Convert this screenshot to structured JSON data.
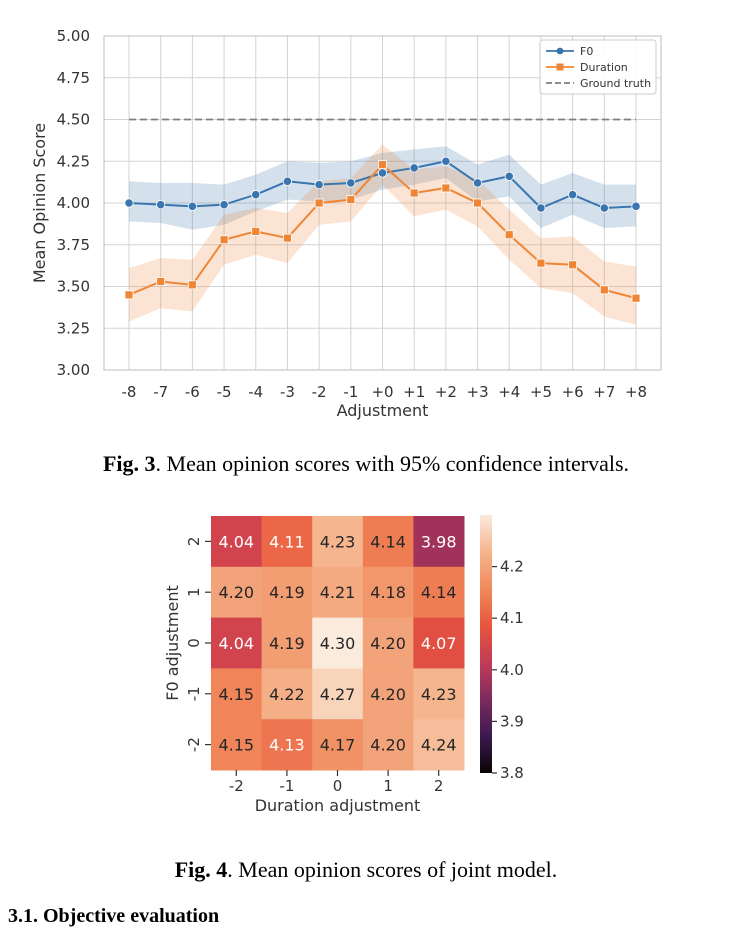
{
  "figures": {
    "fig3": {
      "caption_label": "Fig. 3",
      "caption_text": ". Mean opinion scores with 95% confidence intervals."
    },
    "fig4": {
      "caption_label": "Fig. 4",
      "caption_text": ". Mean opinion scores of joint model."
    }
  },
  "section_heading": "3.1. Objective evaluation",
  "chart_data": [
    {
      "type": "line",
      "title": "",
      "xlabel": "Adjustment",
      "ylabel": "Mean Opinion Score",
      "categories": [
        "-8",
        "-7",
        "-6",
        "-5",
        "-4",
        "-3",
        "-2",
        "-1",
        "+0",
        "+1",
        "+2",
        "+3",
        "+4",
        "+5",
        "+6",
        "+7",
        "+8"
      ],
      "ylim": [
        3.0,
        5.0
      ],
      "yticks": [
        "3.00",
        "3.25",
        "3.50",
        "3.75",
        "4.00",
        "4.25",
        "4.50",
        "4.75",
        "5.00"
      ],
      "grid": true,
      "legend_position": "top-right",
      "series": [
        {
          "name": "F0",
          "color": "#3a75af",
          "marker": "circle",
          "values": [
            4.0,
            3.99,
            3.98,
            3.99,
            4.05,
            4.13,
            4.11,
            4.12,
            4.18,
            4.21,
            4.25,
            4.12,
            4.16,
            3.97,
            4.05,
            3.97,
            3.98
          ],
          "ci_lower": [
            3.89,
            3.88,
            3.84,
            3.87,
            3.95,
            4.02,
            4.01,
            4.02,
            4.08,
            4.11,
            4.15,
            4.01,
            4.04,
            3.85,
            3.93,
            3.85,
            3.86
          ],
          "ci_upper": [
            4.13,
            4.12,
            4.12,
            4.11,
            4.17,
            4.25,
            4.24,
            4.25,
            4.3,
            4.32,
            4.34,
            4.23,
            4.29,
            4.11,
            4.18,
            4.11,
            4.11
          ]
        },
        {
          "name": "Duration",
          "color": "#ef8636",
          "marker": "square",
          "values": [
            3.45,
            3.53,
            3.51,
            3.78,
            3.83,
            3.79,
            4.0,
            4.02,
            4.23,
            4.06,
            4.09,
            4.0,
            3.81,
            3.64,
            3.63,
            3.48,
            3.43
          ],
          "ci_lower": [
            3.29,
            3.37,
            3.35,
            3.63,
            3.69,
            3.64,
            3.87,
            3.89,
            4.11,
            3.92,
            3.96,
            3.86,
            3.66,
            3.49,
            3.46,
            3.32,
            3.27
          ],
          "ci_upper": [
            3.61,
            3.67,
            3.66,
            3.93,
            3.97,
            3.94,
            4.13,
            4.15,
            4.35,
            4.2,
            4.22,
            4.14,
            3.96,
            3.79,
            3.8,
            3.65,
            3.62
          ]
        },
        {
          "name": "Ground truth",
          "color": "#808080",
          "style": "dashed",
          "values": [
            4.5,
            4.5,
            4.5,
            4.5,
            4.5,
            4.5,
            4.5,
            4.5,
            4.5,
            4.5,
            4.5,
            4.5,
            4.5,
            4.5,
            4.5,
            4.5,
            4.5
          ]
        }
      ]
    },
    {
      "type": "heatmap",
      "title": "",
      "xlabel": "Duration adjustment",
      "ylabel": "F0 adjustment",
      "x": [
        "-2",
        "-1",
        "0",
        "1",
        "2"
      ],
      "y": [
        "2",
        "1",
        "0",
        "-1",
        "-2"
      ],
      "values": [
        [
          "4.04",
          "4.11",
          "4.23",
          "4.14",
          "3.98"
        ],
        [
          "4.20",
          "4.19",
          "4.21",
          "4.18",
          "4.14"
        ],
        [
          "4.04",
          "4.19",
          "4.30",
          "4.20",
          "4.07"
        ],
        [
          "4.15",
          "4.22",
          "4.27",
          "4.20",
          "4.23"
        ],
        [
          "4.15",
          "4.13",
          "4.17",
          "4.20",
          "4.24"
        ]
      ],
      "colorbar": {
        "range": [
          3.8,
          4.3
        ],
        "ticks": [
          "3.8",
          "3.9",
          "4.0",
          "4.1",
          "4.2"
        ],
        "colors": [
          "#0b0405",
          "#3b1a4f",
          "#7d2a5e",
          "#c33b57",
          "#e9553d",
          "#f08a5b",
          "#f5b48d",
          "#faebdd"
        ]
      }
    }
  ]
}
